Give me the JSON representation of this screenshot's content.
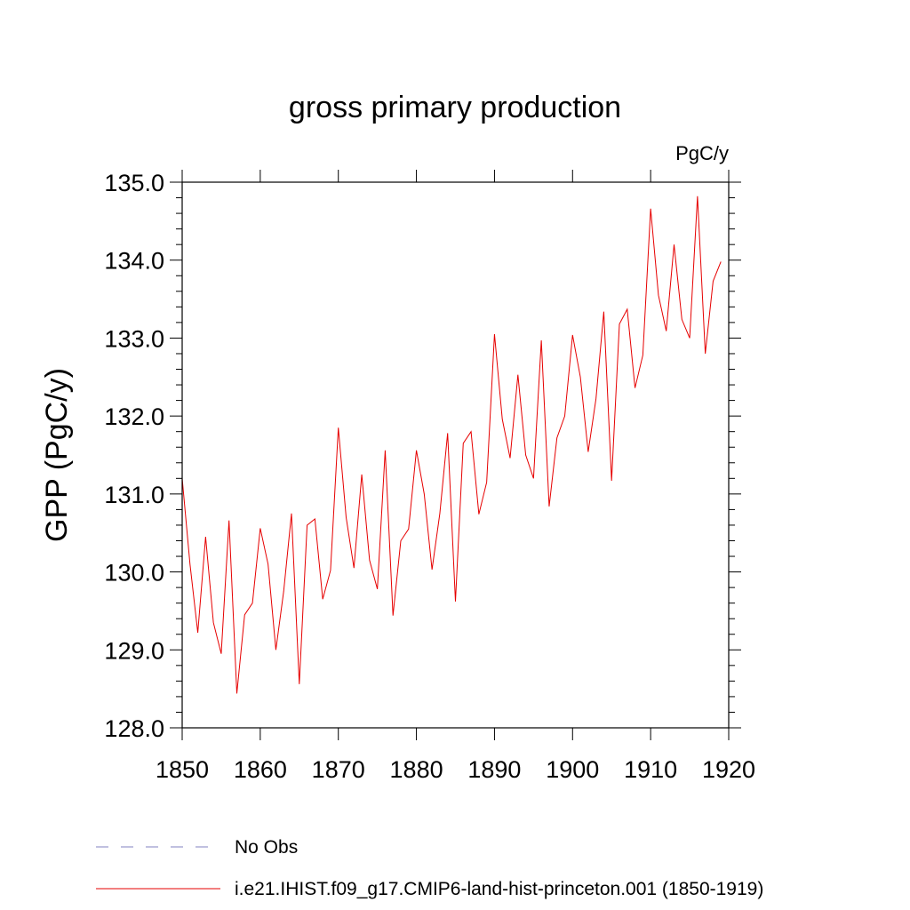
{
  "chart_data": {
    "type": "line",
    "title": "gross primary production",
    "units": "PgC/y",
    "ylabel": "GPP  (PgC/y)",
    "xlabel": "",
    "xlim": [
      1850,
      1920
    ],
    "ylim": [
      128.0,
      135.0
    ],
    "xticks": [
      1850,
      1860,
      1870,
      1880,
      1890,
      1900,
      1910,
      1920
    ],
    "yticks": [
      128.0,
      129.0,
      130.0,
      131.0,
      132.0,
      133.0,
      134.0,
      135.0
    ],
    "xtick_labels": [
      "1850",
      "1860",
      "1870",
      "1880",
      "1890",
      "1900",
      "1910",
      "1920"
    ],
    "ytick_labels": [
      "128.0",
      "129.0",
      "130.0",
      "131.0",
      "132.0",
      "133.0",
      "134.0",
      "135.0"
    ],
    "grid": false,
    "legend_position": "bottom",
    "series": [
      {
        "name": "No Obs",
        "color": "#8080c0",
        "dash": "dashed",
        "x": [],
        "values": []
      },
      {
        "name": "i.e21.IHIST.f09_g17.CMIP6-land-hist-princeton.001 (1850-1919)",
        "color": "#e60000",
        "dash": "solid",
        "x": [
          1850,
          1851,
          1852,
          1853,
          1854,
          1855,
          1856,
          1857,
          1858,
          1859,
          1860,
          1861,
          1862,
          1863,
          1864,
          1865,
          1866,
          1867,
          1868,
          1869,
          1870,
          1871,
          1872,
          1873,
          1874,
          1875,
          1876,
          1877,
          1878,
          1879,
          1880,
          1881,
          1882,
          1883,
          1884,
          1885,
          1886,
          1887,
          1888,
          1889,
          1890,
          1891,
          1892,
          1893,
          1894,
          1895,
          1896,
          1897,
          1898,
          1899,
          1900,
          1901,
          1902,
          1903,
          1904,
          1905,
          1906,
          1907,
          1908,
          1909,
          1910,
          1911,
          1912,
          1913,
          1914,
          1915,
          1916,
          1917,
          1918,
          1919
        ],
        "values": [
          131.2,
          130.1,
          129.22,
          130.45,
          129.35,
          128.95,
          130.66,
          128.44,
          129.45,
          129.6,
          130.56,
          130.1,
          129.0,
          129.75,
          130.75,
          128.56,
          130.6,
          130.68,
          129.65,
          130.02,
          131.85,
          130.7,
          130.05,
          131.25,
          130.15,
          129.78,
          131.56,
          129.44,
          130.4,
          130.55,
          131.56,
          131.0,
          130.03,
          130.75,
          131.78,
          129.62,
          131.65,
          131.8,
          130.74,
          131.15,
          133.05,
          131.96,
          131.46,
          132.53,
          131.5,
          131.2,
          132.97,
          130.84,
          131.72,
          132.0,
          133.04,
          132.5,
          131.54,
          132.22,
          133.34,
          131.17,
          133.18,
          133.37,
          132.36,
          132.78,
          134.66,
          133.55,
          133.09,
          134.2,
          133.24,
          133.0,
          134.82,
          132.8,
          133.73,
          133.98
        ]
      }
    ]
  }
}
